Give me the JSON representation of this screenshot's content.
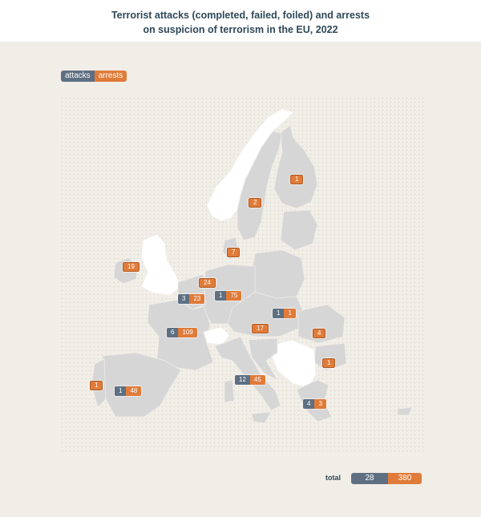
{
  "title": {
    "line1": "Terrorist attacks (completed, failed, foiled) and arrests",
    "line2": "on suspicion of terrorism in the EU, 2022"
  },
  "legend": {
    "attacks": "attacks",
    "arrests": "arrests"
  },
  "total": {
    "label": "total",
    "attacks": "28",
    "arrests": "380"
  },
  "colors": {
    "attacks": "#5e6f82",
    "arrests": "#e07b39",
    "land": "#d6d6d6",
    "non_eu": "#ffffff",
    "background": "#f1ede7",
    "title": "#2f4858"
  },
  "countries": [
    {
      "name": "Finland",
      "attacks": "",
      "arrests": "1"
    },
    {
      "name": "Sweden",
      "attacks": "",
      "arrests": "2"
    },
    {
      "name": "Denmark",
      "attacks": "",
      "arrests": "7"
    },
    {
      "name": "Ireland",
      "attacks": "",
      "arrests": "19"
    },
    {
      "name": "Netherlands",
      "attacks": "",
      "arrests": "24"
    },
    {
      "name": "Belgium",
      "attacks": "3",
      "arrests": "23"
    },
    {
      "name": "Germany",
      "attacks": "1",
      "arrests": "75"
    },
    {
      "name": "Hungary",
      "attacks": "1",
      "arrests": "1"
    },
    {
      "name": "France",
      "attacks": "6",
      "arrests": "109"
    },
    {
      "name": "Austria",
      "attacks": "",
      "arrests": "17"
    },
    {
      "name": "Romania",
      "attacks": "",
      "arrests": "4"
    },
    {
      "name": "Bulgaria",
      "attacks": "",
      "arrests": "1"
    },
    {
      "name": "Portugal",
      "attacks": "",
      "arrests": "1"
    },
    {
      "name": "Spain",
      "attacks": "1",
      "arrests": "48"
    },
    {
      "name": "Italy",
      "attacks": "12",
      "arrests": "45"
    },
    {
      "name": "Greece",
      "attacks": "4",
      "arrests": "3"
    }
  ]
}
